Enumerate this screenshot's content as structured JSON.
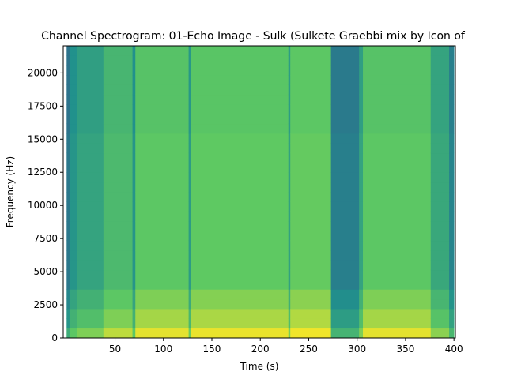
{
  "chart_data": {
    "type": "heatmap",
    "title": "Channel Spectrogram: 01-Echo Image - Sulk (Sulkete Graebbi mix by Icon of",
    "xlabel": "Time (s)",
    "ylabel": "Frequency (Hz)",
    "xlim": [
      0,
      400
    ],
    "ylim": [
      0,
      22050
    ],
    "x_ticks": [
      50,
      100,
      150,
      200,
      250,
      300,
      350,
      400
    ],
    "y_ticks": [
      0,
      2500,
      5000,
      7500,
      10000,
      12500,
      15000,
      17500,
      20000
    ],
    "x_tick_labels": [
      "50",
      "100",
      "150",
      "200",
      "250",
      "300",
      "350",
      "400"
    ],
    "y_tick_labels": [
      "0",
      "2500",
      "5000",
      "7500",
      "10000",
      "12500",
      "15000",
      "17500",
      "20000"
    ],
    "colormap": "viridis",
    "segments": [
      {
        "t_start": 0,
        "t_end": 3,
        "level": 0.4
      },
      {
        "t_start": 3,
        "t_end": 11,
        "level": 0.52
      },
      {
        "t_start": 11,
        "t_end": 38,
        "level": 0.58
      },
      {
        "t_start": 38,
        "t_end": 68,
        "level": 0.68
      },
      {
        "t_start": 68,
        "t_end": 71,
        "level": 0.52
      },
      {
        "t_start": 71,
        "t_end": 126,
        "level": 0.74
      },
      {
        "t_start": 126,
        "t_end": 128,
        "level": 0.55
      },
      {
        "t_start": 128,
        "t_end": 229,
        "level": 0.75
      },
      {
        "t_start": 229,
        "t_end": 231,
        "level": 0.57
      },
      {
        "t_start": 231,
        "t_end": 273,
        "level": 0.76
      },
      {
        "t_start": 273,
        "t_end": 302,
        "level": 0.43
      },
      {
        "t_start": 302,
        "t_end": 306,
        "level": 0.58
      },
      {
        "t_start": 306,
        "t_end": 376,
        "level": 0.74
      },
      {
        "t_start": 376,
        "t_end": 395,
        "level": 0.6
      },
      {
        "t_start": 395,
        "t_end": 400,
        "level": 0.45
      }
    ],
    "low_frequency_boost": [
      {
        "f_max": 600,
        "add": 0.22
      },
      {
        "f_max": 1500,
        "add": 0.12
      },
      {
        "f_max": 3000,
        "add": 0.06
      }
    ]
  }
}
